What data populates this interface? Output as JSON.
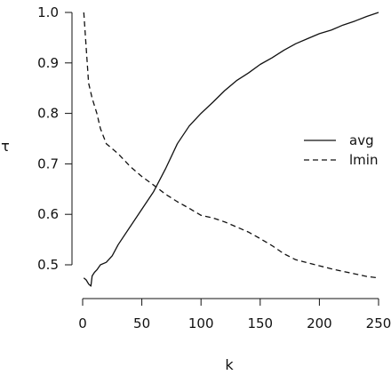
{
  "chart_data": {
    "type": "line",
    "xlabel": "k",
    "ylabel": "τ",
    "xlim": [
      0,
      250
    ],
    "ylim": [
      0.45,
      1.0
    ],
    "x_ticks": [
      "0",
      "50",
      "100",
      "150",
      "200",
      "250"
    ],
    "y_ticks": [
      "0.5",
      "0.6",
      "0.7",
      "0.8",
      "0.9",
      "1.0"
    ],
    "grid": false,
    "legend_placement": "right",
    "series": [
      {
        "name": "avg",
        "line_style": "solid",
        "x": [
          1,
          3,
          5,
          7,
          8,
          10,
          12,
          15,
          20,
          25,
          30,
          40,
          50,
          60,
          70,
          80,
          90,
          100,
          110,
          120,
          130,
          140,
          150,
          160,
          170,
          180,
          190,
          200,
          210,
          220,
          230,
          240,
          250
        ],
        "y": [
          0.474,
          0.47,
          0.462,
          0.458,
          0.478,
          0.485,
          0.49,
          0.5,
          0.505,
          0.518,
          0.54,
          0.575,
          0.61,
          0.645,
          0.69,
          0.74,
          0.775,
          0.8,
          0.822,
          0.845,
          0.865,
          0.88,
          0.897,
          0.91,
          0.925,
          0.938,
          0.948,
          0.958,
          0.965,
          0.975,
          0.983,
          0.992,
          1.0
        ]
      },
      {
        "name": "lmin",
        "line_style": "dashed",
        "x": [
          1,
          3,
          5,
          8,
          12,
          15,
          20,
          30,
          40,
          50,
          60,
          70,
          80,
          90,
          100,
          110,
          120,
          130,
          140,
          150,
          160,
          170,
          180,
          190,
          200,
          210,
          220,
          230,
          240,
          250
        ],
        "y": [
          1.0,
          0.93,
          0.86,
          0.83,
          0.8,
          0.77,
          0.74,
          0.72,
          0.695,
          0.675,
          0.658,
          0.64,
          0.625,
          0.612,
          0.598,
          0.593,
          0.585,
          0.575,
          0.565,
          0.552,
          0.538,
          0.522,
          0.51,
          0.504,
          0.498,
          0.492,
          0.487,
          0.482,
          0.477,
          0.474
        ]
      }
    ]
  }
}
